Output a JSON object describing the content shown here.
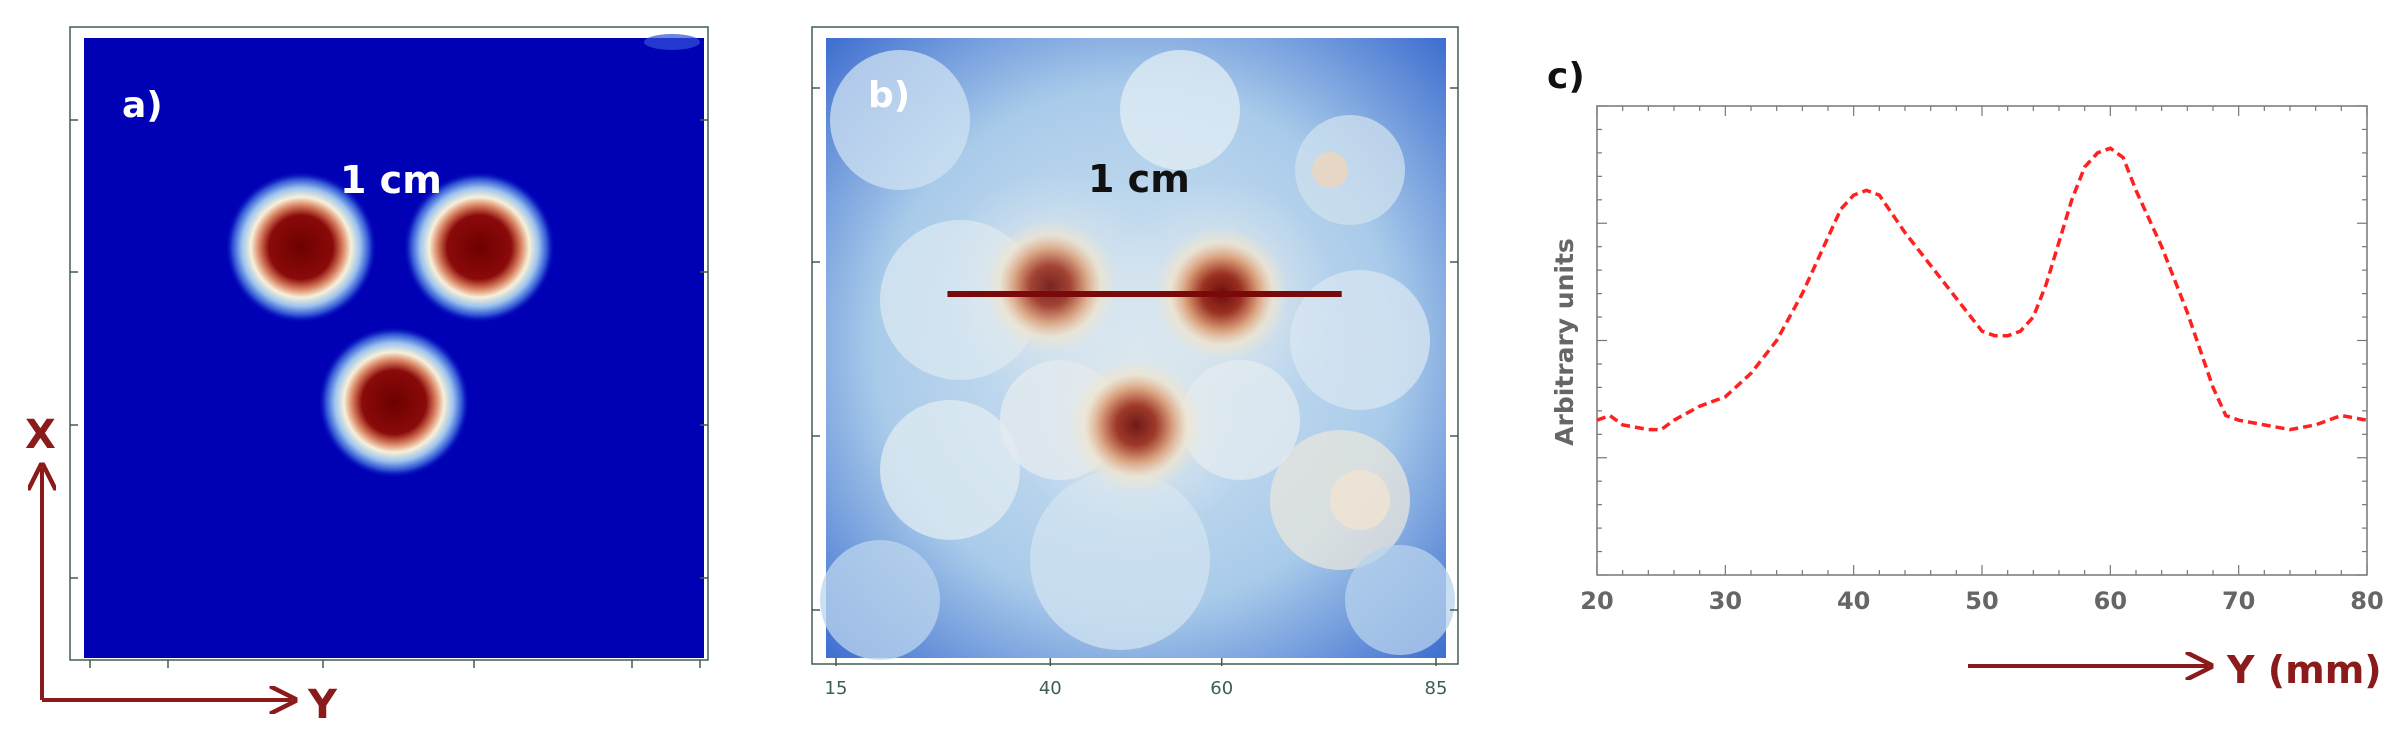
{
  "colors": {
    "arrow": "#8b1a1a",
    "curve": "#ff2020",
    "frame_green": "#3e5e52",
    "axis_gray": "#777777",
    "dark_blue": "#0000b4",
    "dark_red": "#7a0000",
    "line_b": "#7a0a0a"
  },
  "panel_a": {
    "label": "a)",
    "scale_label": "1 cm",
    "axis_x_label": "X",
    "axis_y_label": "Y"
  },
  "panel_b": {
    "label": "b)",
    "scale_label": "1 cm",
    "ticks": [
      "15",
      "40",
      "60",
      "85"
    ]
  },
  "panel_c": {
    "label": "c)",
    "ylabel": "Arbitrary units",
    "xlabel": "Y (mm)"
  },
  "chart_data": [
    {
      "type": "heatmap",
      "panel": "a",
      "title": "",
      "spots": [
        {
          "y_mm": 38,
          "x_mm": 27,
          "intensity": 1.0
        },
        {
          "y_mm": 61,
          "x_mm": 27,
          "intensity": 1.0
        },
        {
          "y_mm": 50,
          "x_mm": 47,
          "intensity": 1.0
        }
      ],
      "colormap": "jet"
    },
    {
      "type": "heatmap",
      "panel": "b",
      "title": "",
      "x_ticks": [
        15,
        40,
        60,
        85
      ],
      "spots": [
        {
          "y_mm": 40,
          "x_mm": 32,
          "intensity": 0.9
        },
        {
          "y_mm": 60,
          "x_mm": 33,
          "intensity": 1.0
        },
        {
          "y_mm": 50,
          "x_mm": 50,
          "intensity": 0.95
        }
      ],
      "profile_line": {
        "y_from_mm": 28,
        "y_to_mm": 74
      },
      "colormap": "jet"
    },
    {
      "type": "line",
      "panel": "c",
      "title": "",
      "xlabel": "Y (mm)",
      "ylabel": "Arbitrary units",
      "xlim": [
        20,
        80
      ],
      "ylim": [
        0,
        1
      ],
      "x_ticks": [
        20,
        30,
        40,
        50,
        60,
        70,
        80
      ],
      "series": [
        {
          "style": "dashed",
          "x": [
            20,
            21,
            22,
            24,
            25,
            26,
            28,
            30,
            32,
            34,
            36,
            38,
            39,
            40,
            41,
            42,
            43,
            44,
            46,
            48,
            50,
            51,
            52,
            53,
            54,
            55,
            56,
            57,
            58,
            59,
            60,
            61,
            62,
            64,
            66,
            68,
            69,
            70,
            72,
            74,
            76,
            78,
            80
          ],
          "y": [
            0.33,
            0.34,
            0.32,
            0.31,
            0.31,
            0.33,
            0.36,
            0.38,
            0.43,
            0.5,
            0.6,
            0.72,
            0.78,
            0.81,
            0.82,
            0.81,
            0.77,
            0.73,
            0.66,
            0.59,
            0.52,
            0.51,
            0.51,
            0.52,
            0.55,
            0.62,
            0.71,
            0.8,
            0.87,
            0.9,
            0.91,
            0.89,
            0.82,
            0.7,
            0.56,
            0.4,
            0.34,
            0.33,
            0.32,
            0.31,
            0.32,
            0.34,
            0.33
          ]
        }
      ]
    }
  ]
}
